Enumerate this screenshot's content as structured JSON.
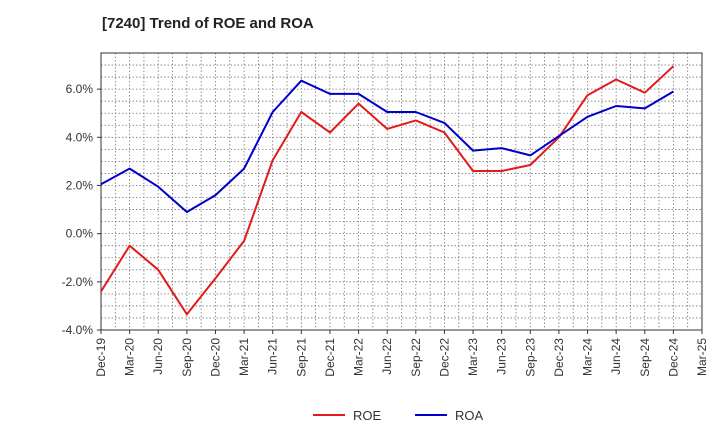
{
  "chart_data": {
    "type": "line",
    "title": "[7240]  Trend of ROE and ROA",
    "x": [
      "Dec-19",
      "Mar-20",
      "Jun-20",
      "Sep-20",
      "Dec-20",
      "Mar-21",
      "Jun-21",
      "Sep-21",
      "Dec-21",
      "Mar-22",
      "Jun-22",
      "Sep-22",
      "Dec-22",
      "Mar-23",
      "Jun-23",
      "Sep-23",
      "Dec-23",
      "Mar-24",
      "Jun-24",
      "Sep-24",
      "Dec-24",
      "Mar-25"
    ],
    "y_ticks": [
      "-4.0%",
      "-2.0%",
      "0.0%",
      "2.0%",
      "4.0%",
      "6.0%"
    ],
    "ylim": [
      -4.0,
      7.5
    ],
    "grid": true,
    "legend_position": "bottom-center",
    "series": [
      {
        "name": "ROE",
        "color": "#e31a1c",
        "values": [
          -2.4,
          -0.5,
          -1.5,
          -3.35,
          -1.85,
          -0.3,
          3.05,
          5.05,
          4.2,
          5.4,
          4.35,
          4.7,
          4.2,
          2.6,
          2.6,
          2.85,
          4.0,
          5.75,
          6.4,
          5.85,
          6.95,
          null
        ]
      },
      {
        "name": "ROA",
        "color": "#0000cc",
        "values": [
          2.05,
          2.7,
          1.95,
          0.9,
          1.6,
          2.7,
          5.05,
          6.35,
          5.8,
          5.8,
          5.05,
          5.05,
          4.6,
          3.45,
          3.55,
          3.25,
          4.05,
          4.85,
          5.3,
          5.2,
          5.9,
          null
        ]
      }
    ]
  }
}
